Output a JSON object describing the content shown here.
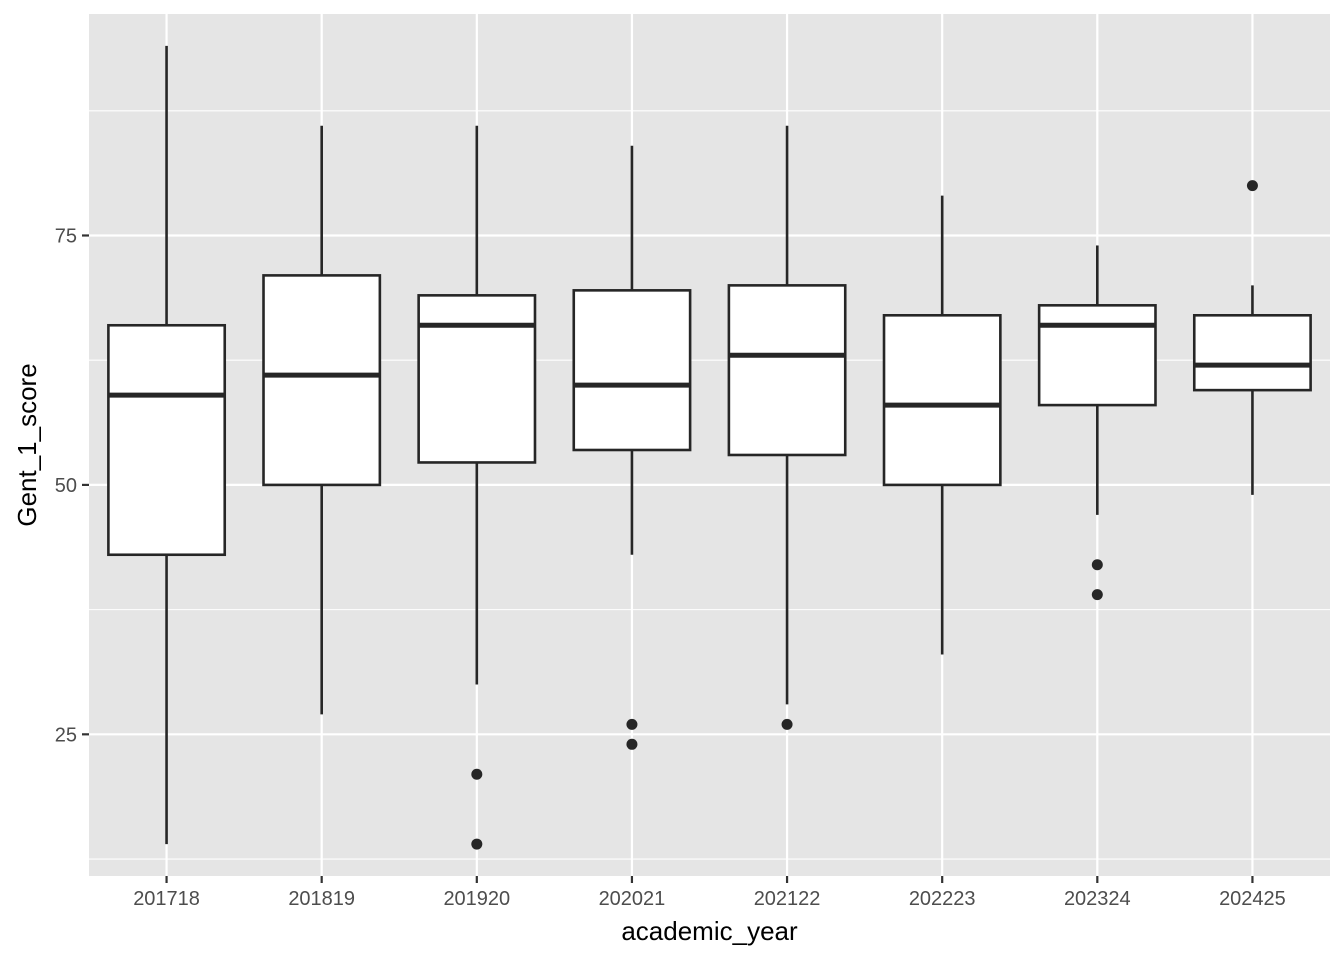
{
  "chart_data": {
    "type": "boxplot",
    "title": "",
    "xlabel": "academic_year",
    "ylabel": "Gent_1_score",
    "categories": [
      "201718",
      "201819",
      "201920",
      "202021",
      "202122",
      "202223",
      "202324",
      "202425"
    ],
    "boxes": [
      {
        "category": "201718",
        "whisker_low": 14,
        "q1": 43,
        "median": 59,
        "q3": 66,
        "whisker_high": 94,
        "outliers": []
      },
      {
        "category": "201819",
        "whisker_low": 27,
        "q1": 50,
        "median": 61,
        "q3": 71,
        "whisker_high": 86,
        "outliers": []
      },
      {
        "category": "201920",
        "whisker_low": 30,
        "q1": 52.25,
        "median": 66,
        "q3": 69,
        "whisker_high": 86,
        "outliers": [
          21,
          14
        ]
      },
      {
        "category": "202021",
        "whisker_low": 43,
        "q1": 53.5,
        "median": 60,
        "q3": 69.5,
        "whisker_high": 84,
        "outliers": [
          26,
          24
        ]
      },
      {
        "category": "202122",
        "whisker_low": 28,
        "q1": 53,
        "median": 63,
        "q3": 70,
        "whisker_high": 86,
        "outliers": [
          26
        ]
      },
      {
        "category": "202223",
        "whisker_low": 33,
        "q1": 50,
        "median": 58,
        "q3": 67,
        "whisker_high": 79,
        "outliers": []
      },
      {
        "category": "202324",
        "whisker_low": 47,
        "q1": 58,
        "median": 66,
        "q3": 68,
        "whisker_high": 74,
        "outliers": [
          42,
          39
        ]
      },
      {
        "category": "202425",
        "whisker_low": 49,
        "q1": 59.5,
        "median": 62,
        "q3": 67,
        "whisker_high": 70,
        "outliers": [
          80
        ]
      }
    ],
    "y_ticks": [
      25,
      50,
      75
    ],
    "ylim": [
      10.8,
      97.2
    ],
    "grid": true,
    "legend": "none",
    "colors": {
      "panel_background": "#e5e5e5",
      "grid_major": "#ffffff",
      "box_fill": "#ffffff",
      "box_stroke": "#262626",
      "tick_text": "#4d4d4d",
      "title_text": "#000000"
    }
  }
}
